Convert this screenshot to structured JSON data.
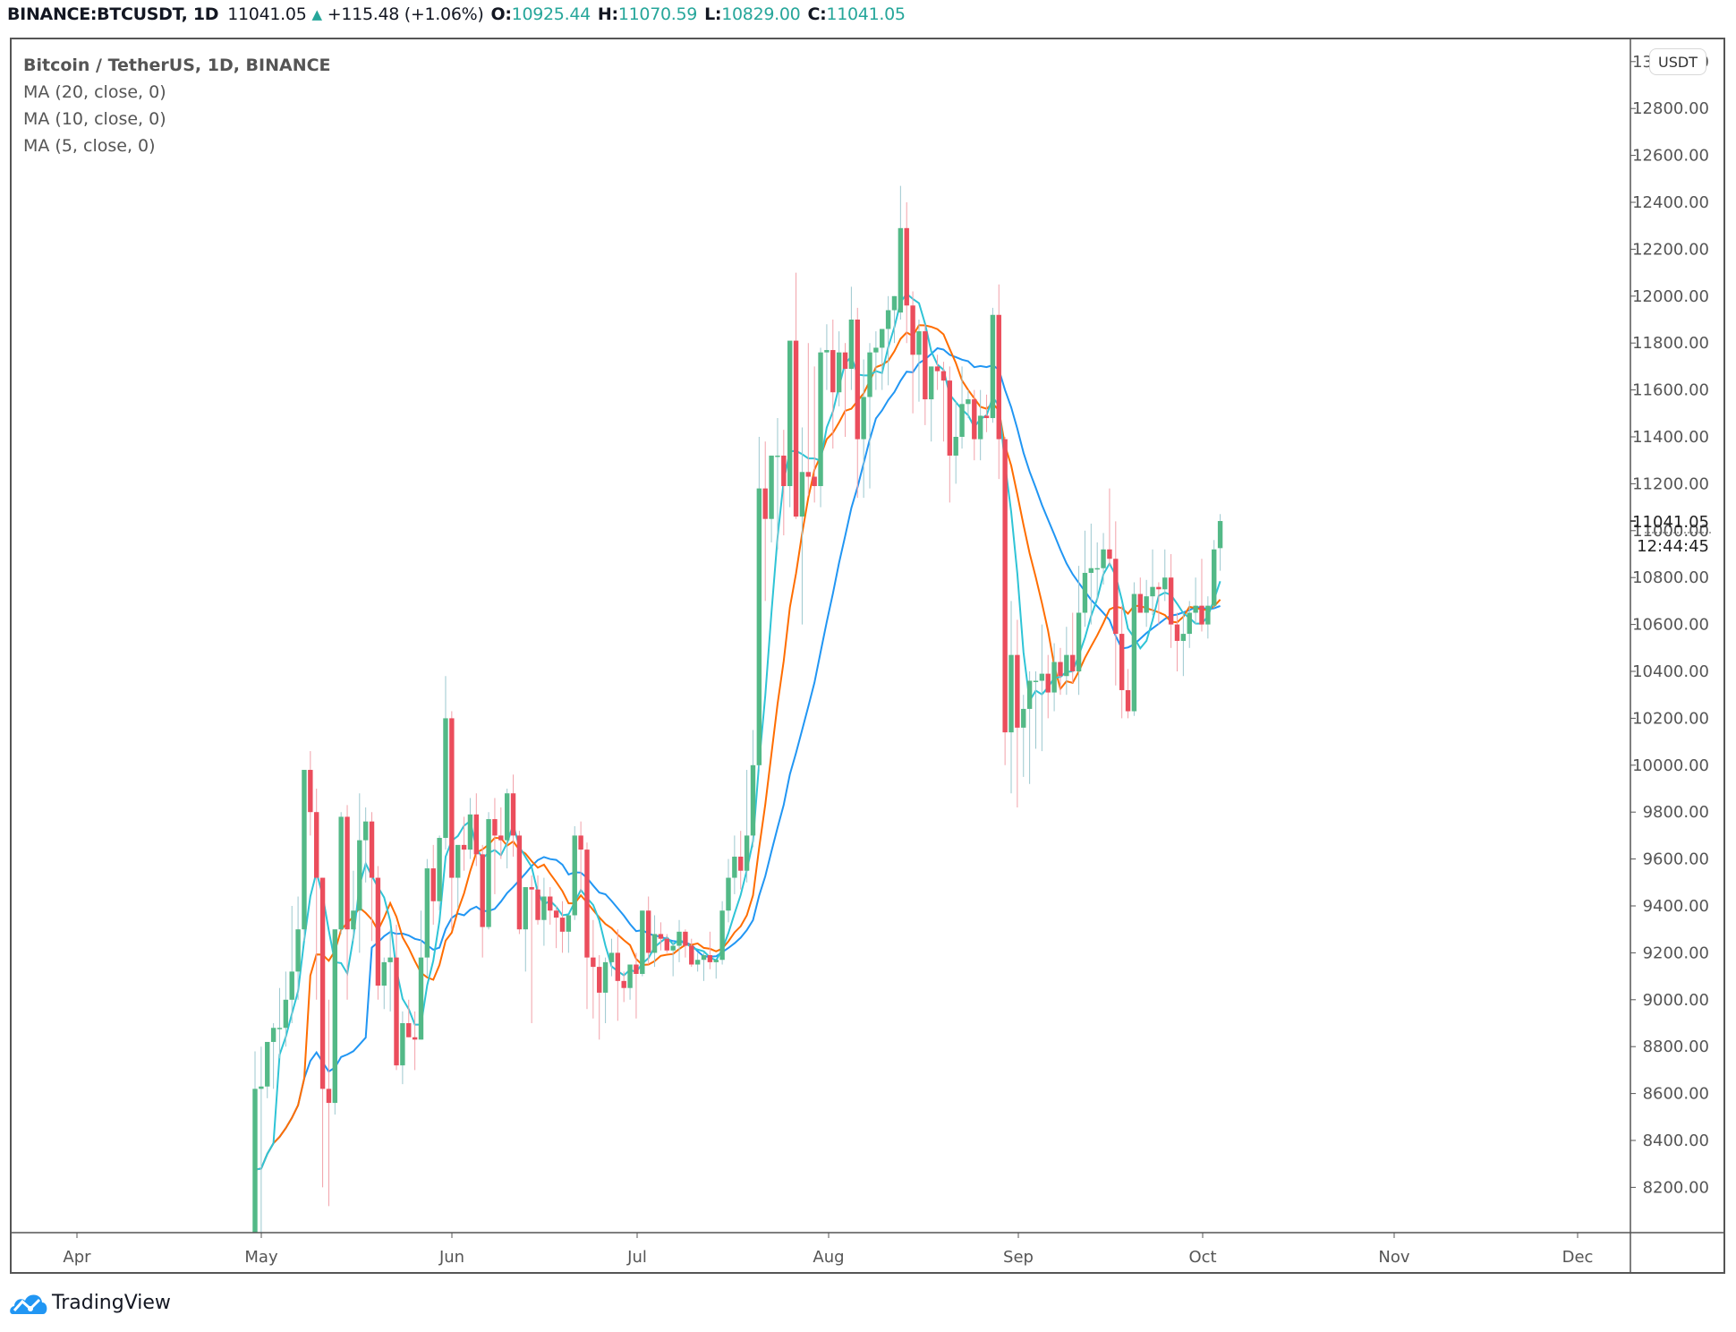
{
  "header": {
    "symbol": "BINANCE:BTCUSDT, 1D",
    "last": "11041.05",
    "change": "+115.48 (+1.06%)",
    "open_label": "O:",
    "open": "10925.44",
    "high_label": "H:",
    "high": "11070.59",
    "low_label": "L:",
    "low": "10829.00",
    "close_label": "C:",
    "close": "11041.05"
  },
  "legend": {
    "title": "Bitcoin / TetherUS, 1D, BINANCE",
    "indicators": [
      "MA (20, close, 0)",
      "MA (10, close, 0)",
      "MA (5, close, 0)"
    ]
  },
  "price_axis": {
    "currency_button": "USDT",
    "current_price": "11041.05",
    "countdown": "12:44:45"
  },
  "footer": {
    "brand": "TradingView"
  },
  "colors": {
    "up": "#53b987",
    "down": "#eb4d5c",
    "wick_up": "#9cc8cf",
    "wick_down": "#f2a1a9",
    "ma5": "#2fc4d6",
    "ma10": "#ff6d00",
    "ma20": "#2196f3",
    "header_value": "#26a69a"
  },
  "chart_data": {
    "type": "candlestick",
    "title": "Bitcoin / TetherUS, 1D, BINANCE",
    "xlabel": "",
    "ylabel": "USDT",
    "x_ticks": [
      "Apr",
      "May",
      "Jun",
      "Jul",
      "Aug",
      "Sep",
      "Oct",
      "Nov",
      "Dec"
    ],
    "y_ticks": [
      8200,
      8400,
      8600,
      8800,
      9000,
      9200,
      9400,
      9600,
      9800,
      10000,
      10200,
      10400,
      10600,
      10800,
      11000,
      11200,
      11400,
      11600,
      11800,
      12000,
      12200,
      12400,
      12600,
      12800
    ],
    "ylim": [
      8000,
      13100
    ],
    "grid": false,
    "start_date": "2020-04-30",
    "series_fields": [
      "open",
      "high",
      "low",
      "close"
    ],
    "ohlc": [
      [
        7900,
        8780,
        7800,
        8620
      ],
      [
        8620,
        8800,
        7700,
        8630
      ],
      [
        8630,
        8800,
        8580,
        8820
      ],
      [
        8820,
        8900,
        8620,
        8880
      ],
      [
        8880,
        9050,
        8750,
        8880
      ],
      [
        8880,
        9120,
        8800,
        9000
      ],
      [
        9000,
        9400,
        8900,
        9120
      ],
      [
        9120,
        9440,
        9000,
        9300
      ],
      [
        9300,
        9980,
        9250,
        9980
      ],
      [
        9980,
        10060,
        9700,
        9800
      ],
      [
        9800,
        9900,
        9000,
        9520
      ],
      [
        9520,
        9520,
        8200,
        8620
      ],
      [
        8620,
        9000,
        8120,
        8560
      ],
      [
        8560,
        9300,
        8510,
        9300
      ],
      [
        9300,
        9800,
        9280,
        9780
      ],
      [
        9780,
        9830,
        9000,
        9300
      ],
      [
        9300,
        9550,
        9250,
        9380
      ],
      [
        9380,
        9880,
        9200,
        9680
      ],
      [
        9680,
        9820,
        9500,
        9760
      ],
      [
        9760,
        9800,
        9250,
        9520
      ],
      [
        9520,
        9570,
        9000,
        9060
      ],
      [
        9060,
        9180,
        8960,
        9160
      ],
      [
        9160,
        9300,
        8950,
        9180
      ],
      [
        9180,
        9320,
        8700,
        8720
      ],
      [
        8720,
        8950,
        8640,
        8900
      ],
      [
        8900,
        9000,
        8840,
        8840
      ],
      [
        8840,
        8950,
        8700,
        8830
      ],
      [
        8830,
        9380,
        8830,
        9180
      ],
      [
        9180,
        9600,
        9100,
        9560
      ],
      [
        9560,
        9660,
        9320,
        9420
      ],
      [
        9420,
        9700,
        9380,
        9690
      ],
      [
        9690,
        10380,
        9640,
        10200
      ],
      [
        10200,
        10230,
        9300,
        9520
      ],
      [
        9520,
        9600,
        9390,
        9660
      ],
      [
        9660,
        9780,
        9550,
        9640
      ],
      [
        9640,
        9860,
        9600,
        9790
      ],
      [
        9790,
        9880,
        9570,
        9620
      ],
      [
        9620,
        9660,
        9180,
        9310
      ],
      [
        9310,
        9800,
        9300,
        9770
      ],
      [
        9770,
        9860,
        9450,
        9700
      ],
      [
        9700,
        9820,
        9600,
        9680
      ],
      [
        9680,
        9900,
        9560,
        9880
      ],
      [
        9880,
        9960,
        9610,
        9700
      ],
      [
        9700,
        9720,
        9280,
        9300
      ],
      [
        9300,
        9480,
        9120,
        9480
      ],
      [
        9480,
        9530,
        8900,
        9470
      ],
      [
        9470,
        9530,
        9320,
        9340
      ],
      [
        9340,
        9520,
        9230,
        9440
      ],
      [
        9440,
        9480,
        9320,
        9380
      ],
      [
        9380,
        9400,
        9220,
        9350
      ],
      [
        9350,
        9420,
        9200,
        9290
      ],
      [
        9290,
        9320,
        9200,
        9360
      ],
      [
        9360,
        9740,
        9340,
        9700
      ],
      [
        9700,
        9760,
        9460,
        9640
      ],
      [
        9640,
        9670,
        8960,
        9180
      ],
      [
        9180,
        9340,
        8920,
        9140
      ],
      [
        9140,
        9190,
        8830,
        9030
      ],
      [
        9030,
        9180,
        8900,
        9160
      ],
      [
        9160,
        9260,
        9100,
        9200
      ],
      [
        9200,
        9300,
        8910,
        9080
      ],
      [
        9080,
        9120,
        8990,
        9050
      ],
      [
        9050,
        9140,
        9000,
        9150
      ],
      [
        9150,
        9200,
        8920,
        9110
      ],
      [
        9110,
        9380,
        9100,
        9380
      ],
      [
        9380,
        9440,
        9150,
        9200
      ],
      [
        9200,
        9360,
        9140,
        9280
      ],
      [
        9280,
        9330,
        9210,
        9260
      ],
      [
        9260,
        9280,
        9200,
        9210
      ],
      [
        9210,
        9250,
        9100,
        9230
      ],
      [
        9230,
        9340,
        9160,
        9290
      ],
      [
        9290,
        9300,
        9180,
        9230
      ],
      [
        9230,
        9260,
        9140,
        9150
      ],
      [
        9150,
        9200,
        9120,
        9170
      ],
      [
        9170,
        9200,
        9080,
        9190
      ],
      [
        9190,
        9290,
        9130,
        9160
      ],
      [
        9160,
        9170,
        9090,
        9170
      ],
      [
        9170,
        9420,
        9150,
        9380
      ],
      [
        9380,
        9600,
        9330,
        9520
      ],
      [
        9520,
        9700,
        9450,
        9610
      ],
      [
        9610,
        9720,
        9470,
        9550
      ],
      [
        9550,
        9980,
        9500,
        9700
      ],
      [
        9700,
        10150,
        9650,
        10000
      ],
      [
        10000,
        11400,
        9980,
        11180
      ],
      [
        11180,
        11380,
        10700,
        11050
      ],
      [
        11050,
        11320,
        10950,
        11320
      ],
      [
        11320,
        11480,
        10920,
        11320
      ],
      [
        11320,
        11430,
        10980,
        11190
      ],
      [
        11190,
        11500,
        11100,
        11810
      ],
      [
        11810,
        12100,
        11050,
        11060
      ],
      [
        11060,
        11440,
        10600,
        11250
      ],
      [
        11250,
        11800,
        11150,
        11230
      ],
      [
        11230,
        11700,
        11120,
        11190
      ],
      [
        11190,
        11780,
        11100,
        11760
      ],
      [
        11760,
        11880,
        11600,
        11770
      ],
      [
        11770,
        11900,
        11350,
        11590
      ],
      [
        11590,
        11850,
        11530,
        11760
      ],
      [
        11760,
        11800,
        11400,
        11690
      ],
      [
        11690,
        12040,
        11600,
        11900
      ],
      [
        11900,
        11950,
        11140,
        11390
      ],
      [
        11390,
        11730,
        11140,
        11570
      ],
      [
        11570,
        11800,
        11180,
        11760
      ],
      [
        11760,
        11850,
        11600,
        11780
      ],
      [
        11780,
        11850,
        11600,
        11860
      ],
      [
        11860,
        12000,
        11620,
        11940
      ],
      [
        11940,
        12000,
        11800,
        12000
      ],
      [
        11930,
        12470,
        11900,
        12290
      ],
      [
        12290,
        12400,
        11800,
        11960
      ],
      [
        11960,
        12020,
        11500,
        11750
      ],
      [
        11750,
        11900,
        11550,
        11850
      ],
      [
        11850,
        11880,
        11450,
        11560
      ],
      [
        11560,
        11700,
        11380,
        11700
      ],
      [
        11700,
        11750,
        11600,
        11680
      ],
      [
        11680,
        11720,
        11380,
        11640
      ],
      [
        11640,
        11700,
        11120,
        11320
      ],
      [
        11320,
        11550,
        11200,
        11400
      ],
      [
        11400,
        11700,
        11350,
        11540
      ],
      [
        11540,
        11600,
        11480,
        11560
      ],
      [
        11560,
        11600,
        11300,
        11390
      ],
      [
        11390,
        11600,
        11300,
        11490
      ],
      [
        11490,
        11580,
        11420,
        11480
      ],
      [
        11480,
        11950,
        11460,
        11920
      ],
      [
        11920,
        12050,
        11220,
        11390
      ],
      [
        11390,
        11400,
        10000,
        10140
      ],
      [
        10140,
        10700,
        9880,
        10470
      ],
      [
        10470,
        10620,
        9820,
        10160
      ],
      [
        10160,
        10300,
        9950,
        10240
      ],
      [
        10240,
        10400,
        9920,
        10360
      ],
      [
        10360,
        10400,
        10070,
        10360
      ],
      [
        10360,
        10600,
        10060,
        10390
      ],
      [
        10390,
        10470,
        10200,
        10310
      ],
      [
        10310,
        10520,
        10230,
        10440
      ],
      [
        10440,
        10500,
        10300,
        10380
      ],
      [
        10380,
        10590,
        10300,
        10470
      ],
      [
        10470,
        10650,
        10350,
        10400
      ],
      [
        10400,
        10850,
        10300,
        10650
      ],
      [
        10650,
        11000,
        10590,
        10820
      ],
      [
        10820,
        11030,
        10600,
        10840
      ],
      [
        10840,
        10950,
        10700,
        10840
      ],
      [
        10840,
        10990,
        10770,
        10920
      ],
      [
        10920,
        11180,
        10850,
        10880
      ],
      [
        10880,
        11040,
        10340,
        10560
      ],
      [
        10560,
        10680,
        10200,
        10320
      ],
      [
        10320,
        10410,
        10200,
        10230
      ],
      [
        10230,
        10780,
        10210,
        10730
      ],
      [
        10730,
        10800,
        10650,
        10650
      ],
      [
        10650,
        10790,
        10590,
        10720
      ],
      [
        10720,
        10920,
        10640,
        10760
      ],
      [
        10760,
        10780,
        10600,
        10750
      ],
      [
        10750,
        10920,
        10700,
        10800
      ],
      [
        10800,
        10900,
        10500,
        10600
      ],
      [
        10600,
        10650,
        10400,
        10530
      ],
      [
        10530,
        10650,
        10380,
        10560
      ],
      [
        10560,
        10700,
        10500,
        10650
      ],
      [
        10650,
        10800,
        10600,
        10680
      ],
      [
        10680,
        10880,
        10570,
        10600
      ],
      [
        10600,
        10720,
        10540,
        10680
      ],
      [
        10680,
        10960,
        10670,
        10920
      ],
      [
        10925.44,
        11070.59,
        10829.0,
        11041.05
      ]
    ]
  }
}
